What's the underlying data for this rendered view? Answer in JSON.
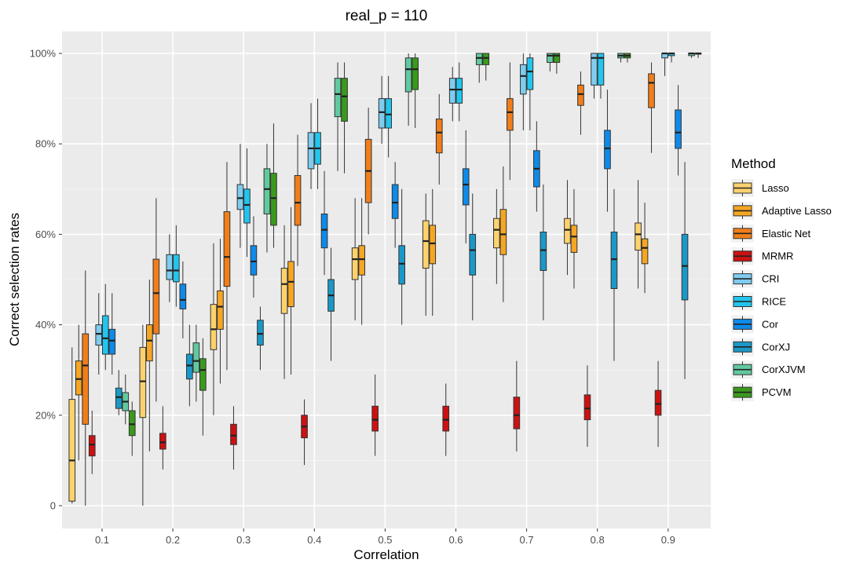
{
  "chart_data": {
    "type": "boxplot",
    "title": "real_p = 110",
    "xlabel": "Correlation",
    "ylabel": "Correct selection rates",
    "categories": [
      "0.1",
      "0.2",
      "0.3",
      "0.4",
      "0.5",
      "0.6",
      "0.7",
      "0.8",
      "0.9"
    ],
    "ylim": [
      0,
      100
    ],
    "yticks": [
      {
        "value": 0,
        "label": "0"
      },
      {
        "value": 20,
        "label": "20%"
      },
      {
        "value": 40,
        "label": "40%"
      },
      {
        "value": 60,
        "label": "60%"
      },
      {
        "value": 80,
        "label": "80%"
      },
      {
        "value": 100,
        "label": "100%"
      }
    ],
    "grid": true,
    "legend_title": "Method",
    "legend_position": "right",
    "series": [
      {
        "name": "Lasso",
        "color": "#FDD26E",
        "boxes": [
          [
            0.5,
            1,
            10,
            23.5,
            35
          ],
          [
            0,
            19.5,
            27.5,
            35,
            40
          ],
          [
            20,
            34.5,
            39,
            44.5,
            58
          ],
          [
            28,
            42.5,
            49,
            52.5,
            62
          ],
          [
            41,
            50,
            54.5,
            57,
            68
          ],
          [
            42,
            52.5,
            58.5,
            63,
            69
          ],
          [
            49,
            57,
            61,
            63.5,
            70
          ],
          [
            51,
            58,
            61,
            63.5,
            72
          ],
          [
            48,
            56.5,
            60,
            62.5,
            72
          ]
        ]
      },
      {
        "name": "Adaptive Lasso",
        "color": "#F5A623",
        "boxes": [
          [
            10,
            24.5,
            28,
            32,
            40
          ],
          [
            12,
            32,
            36.5,
            40,
            50
          ],
          [
            27,
            39,
            44,
            47.5,
            59
          ],
          [
            29,
            44,
            49.5,
            54,
            66
          ],
          [
            40,
            51,
            54.5,
            57.5,
            68
          ],
          [
            42,
            53.5,
            58,
            62,
            70
          ],
          [
            45,
            55.5,
            60,
            65.5,
            75
          ],
          [
            48,
            56,
            59.5,
            62,
            70
          ],
          [
            47,
            53.5,
            57,
            59,
            67
          ]
        ]
      },
      {
        "name": "Elastic Net",
        "color": "#F07E1A",
        "boxes": [
          [
            0,
            18,
            31,
            38,
            52
          ],
          [
            23,
            38,
            47,
            54.5,
            68
          ],
          [
            30,
            48.5,
            55,
            65,
            76
          ],
          [
            53,
            62,
            67,
            73,
            82
          ],
          [
            60,
            67,
            74,
            81,
            88
          ],
          [
            71,
            78,
            82.5,
            85.5,
            91
          ],
          [
            72,
            83,
            87,
            90,
            98
          ],
          [
            82,
            88.5,
            91,
            93,
            96
          ],
          [
            78,
            88,
            93.5,
            95.5,
            98
          ]
        ]
      },
      {
        "name": "MRMR",
        "color": "#CC1111",
        "boxes": [
          [
            7,
            11,
            13.5,
            15.5,
            21
          ],
          [
            8,
            12.5,
            14,
            16,
            22
          ],
          [
            8,
            13.5,
            15.5,
            18,
            22
          ],
          [
            9,
            15,
            17.5,
            20,
            23.5
          ],
          [
            11,
            16.5,
            19,
            22,
            29
          ],
          [
            11,
            16.5,
            19,
            22,
            27
          ],
          [
            12,
            17,
            20,
            24,
            32
          ],
          [
            13,
            19,
            21.5,
            24.5,
            31
          ],
          [
            13,
            20,
            22.5,
            25.5,
            32
          ]
        ]
      },
      {
        "name": "CRI",
        "color": "#7FCCEF",
        "boxes": [
          [
            29,
            35.5,
            38,
            40,
            47
          ],
          [
            45,
            50,
            52,
            55.5,
            60
          ],
          [
            57,
            65.5,
            68,
            71,
            80
          ],
          [
            70,
            74.5,
            79,
            82.5,
            89
          ],
          [
            80,
            83.5,
            87,
            90,
            95
          ],
          [
            85,
            89,
            92,
            94.5,
            97
          ],
          [
            83,
            91,
            95,
            97.5,
            100
          ],
          [
            90,
            93,
            99,
            100,
            100
          ],
          [
            95,
            99,
            100,
            100,
            100
          ]
        ]
      },
      {
        "name": "RICE",
        "color": "#22C5EE",
        "boxes": [
          [
            30,
            33.5,
            37,
            42,
            49
          ],
          [
            44,
            49.5,
            52,
            55.5,
            62
          ],
          [
            55,
            62.5,
            66.5,
            70,
            79
          ],
          [
            70,
            75.5,
            79,
            82.5,
            90
          ],
          [
            77,
            83.5,
            86.5,
            90,
            95
          ],
          [
            85,
            89,
            92,
            94.5,
            98
          ],
          [
            83,
            92,
            96,
            99,
            100
          ],
          [
            90,
            93,
            99,
            100,
            100
          ],
          [
            98,
            99.5,
            100,
            100,
            100
          ]
        ]
      },
      {
        "name": "Cor",
        "color": "#0E8AE8",
        "boxes": [
          [
            29,
            33.5,
            36.5,
            39,
            47
          ],
          [
            37,
            43.5,
            45.5,
            49,
            54
          ],
          [
            46,
            51,
            54,
            57.5,
            64
          ],
          [
            51,
            57,
            61,
            64.5,
            74
          ],
          [
            57,
            63.5,
            67,
            71,
            76
          ],
          [
            58,
            66.5,
            71,
            74.5,
            83
          ],
          [
            65,
            70.5,
            74.5,
            78.5,
            85
          ],
          [
            65,
            74.5,
            79,
            83,
            92
          ],
          [
            73,
            79,
            82.5,
            87.5,
            93
          ]
        ]
      },
      {
        "name": "CorXJ",
        "color": "#1A99C8",
        "boxes": [
          [
            20,
            21.5,
            24,
            26,
            30
          ],
          [
            22,
            28,
            31,
            33.5,
            40
          ],
          [
            30,
            35.5,
            38,
            41,
            44
          ],
          [
            32,
            43,
            46.5,
            50,
            57
          ],
          [
            40,
            49,
            53.5,
            57.5,
            70
          ],
          [
            41,
            51,
            56.5,
            60,
            69
          ],
          [
            41,
            52,
            56.5,
            60.5,
            71
          ],
          [
            32,
            48,
            54.5,
            60.5,
            70
          ],
          [
            28,
            45.5,
            53,
            60,
            76
          ]
        ]
      },
      {
        "name": "CorXJVM",
        "color": "#62C99E",
        "boxes": [
          [
            18,
            21,
            23,
            25,
            29
          ],
          [
            23,
            29.5,
            32,
            36,
            40
          ],
          [
            56,
            64.5,
            70,
            74.5,
            80
          ],
          [
            74,
            86,
            91,
            94.5,
            98
          ],
          [
            84,
            91.5,
            96.5,
            99,
            100
          ],
          [
            93.5,
            97.5,
            99,
            100,
            100
          ],
          [
            96,
            98,
            99.5,
            100,
            100
          ],
          [
            98,
            99,
            99.5,
            100,
            100
          ],
          [
            99,
            99.5,
            100,
            100,
            100
          ]
        ]
      },
      {
        "name": "PCVM",
        "color": "#3A9A1C",
        "boxes": [
          [
            11,
            15.5,
            18,
            21,
            23
          ],
          [
            15.5,
            25.5,
            30,
            32.5,
            37
          ],
          [
            57,
            62,
            68,
            73.5,
            84.5
          ],
          [
            73.5,
            85,
            90.5,
            94.5,
            98
          ],
          [
            83.5,
            92,
            96.5,
            99,
            100
          ],
          [
            94,
            97.5,
            99,
            100,
            100
          ],
          [
            95.5,
            98,
            99.5,
            100,
            100
          ],
          [
            98,
            99,
            99.5,
            100,
            100
          ],
          [
            99,
            100,
            100,
            100,
            100
          ]
        ]
      }
    ]
  }
}
